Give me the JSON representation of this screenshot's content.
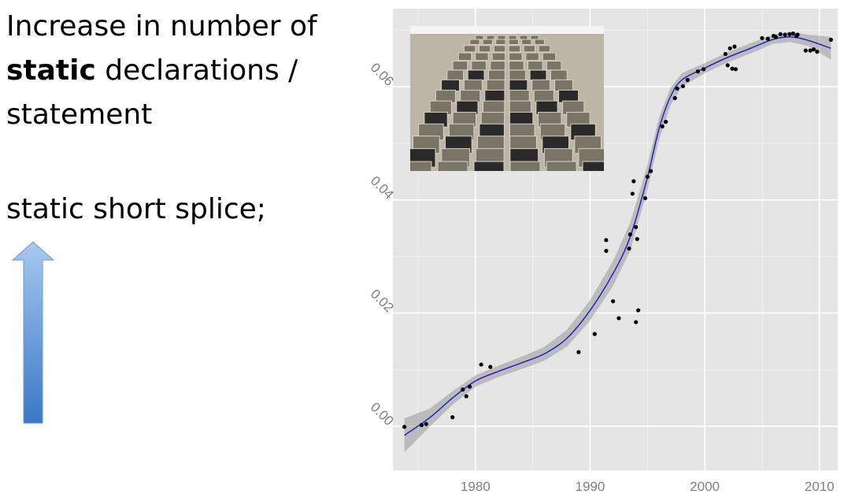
{
  "slide": {
    "title_line1": "Increase in number of",
    "title_bold": "static",
    "title_line2_rest": " declarations /",
    "title_line3": "statement",
    "code_example": "static short splice;"
  },
  "colors": {
    "panel_bg": "#e5e5e5",
    "grid": "#ffffff",
    "smooth_line": "#1a1acc",
    "confidence_band": "#999999",
    "points": "#000000",
    "arrow_top": "#a8c8f0",
    "arrow_bottom": "#3a78c8"
  },
  "icons": {
    "arrow": "up-arrow-icon",
    "photo": "apartment-building-photo"
  },
  "chart_data": {
    "type": "scatter",
    "xlabel": "",
    "ylabel": "",
    "x_ticks": [
      1980,
      1990,
      2000,
      2010
    ],
    "y_ticks": [
      0.0,
      0.02,
      0.04,
      0.06
    ],
    "x_tick_labels": [
      "1980",
      "1990",
      "2000",
      "2010"
    ],
    "y_tick_labels": [
      "0.00",
      "0.02",
      "0.04",
      "0.06"
    ],
    "xlim": [
      1972.8,
      2011.6
    ],
    "ylim": [
      -0.0078,
      0.0738
    ],
    "grid": true,
    "smooth": true,
    "points": [
      [
        1973.8,
        -0.0001
      ],
      [
        1975.3,
        0.0002
      ],
      [
        1975.7,
        0.0004
      ],
      [
        1978.0,
        0.0016
      ],
      [
        1978.9,
        0.0065
      ],
      [
        1979.2,
        0.0053
      ],
      [
        1979.5,
        0.007
      ],
      [
        1980.5,
        0.0109
      ],
      [
        1981.3,
        0.0105
      ],
      [
        1989.0,
        0.0131
      ],
      [
        1990.4,
        0.0163
      ],
      [
        1991.4,
        0.0329
      ],
      [
        1991.4,
        0.031
      ],
      [
        1992.0,
        0.0221
      ],
      [
        1992.5,
        0.0191
      ],
      [
        1993.4,
        0.0314
      ],
      [
        1993.5,
        0.0339
      ],
      [
        1993.7,
        0.0411
      ],
      [
        1993.8,
        0.0433
      ],
      [
        1994.0,
        0.0352
      ],
      [
        1994.0,
        0.0184
      ],
      [
        1994.1,
        0.0331
      ],
      [
        1994.2,
        0.0205
      ],
      [
        1994.8,
        0.0403
      ],
      [
        1995.0,
        0.0441
      ],
      [
        1995.3,
        0.0451
      ],
      [
        1996.3,
        0.053
      ],
      [
        1996.6,
        0.0538
      ],
      [
        1997.4,
        0.058
      ],
      [
        1997.6,
        0.0597
      ],
      [
        1998.1,
        0.0601
      ],
      [
        1998.5,
        0.0612
      ],
      [
        1999.4,
        0.0627
      ],
      [
        1999.9,
        0.0631
      ],
      [
        2001.8,
        0.0658
      ],
      [
        2002.0,
        0.0638
      ],
      [
        2002.2,
        0.0668
      ],
      [
        2002.4,
        0.0632
      ],
      [
        2002.6,
        0.0671
      ],
      [
        2002.7,
        0.0631
      ],
      [
        2005.0,
        0.0686
      ],
      [
        2005.5,
        0.0685
      ],
      [
        2006.0,
        0.069
      ],
      [
        2006.2,
        0.0688
      ],
      [
        2006.6,
        0.0693
      ],
      [
        2007.0,
        0.0692
      ],
      [
        2007.4,
        0.0693
      ],
      [
        2007.7,
        0.0694
      ],
      [
        2008.0,
        0.069
      ],
      [
        2008.1,
        0.0692
      ],
      [
        2008.8,
        0.0664
      ],
      [
        2009.2,
        0.0664
      ],
      [
        2009.5,
        0.0666
      ],
      [
        2009.8,
        0.0662
      ],
      [
        2011.0,
        0.0683
      ]
    ],
    "smooth_curve": [
      [
        1973.8,
        -0.0016
      ],
      [
        1976,
        0.0015
      ],
      [
        1978,
        0.005
      ],
      [
        1980,
        0.008
      ],
      [
        1982,
        0.0097
      ],
      [
        1984,
        0.0112
      ],
      [
        1986,
        0.0128
      ],
      [
        1988,
        0.0156
      ],
      [
        1990,
        0.0205
      ],
      [
        1992,
        0.027
      ],
      [
        1993.5,
        0.0335
      ],
      [
        1995,
        0.044
      ],
      [
        1996,
        0.0525
      ],
      [
        1997,
        0.0582
      ],
      [
        1998,
        0.0612
      ],
      [
        2000,
        0.0633
      ],
      [
        2002,
        0.0652
      ],
      [
        2004,
        0.0668
      ],
      [
        2006,
        0.0684
      ],
      [
        2007.5,
        0.0688
      ],
      [
        2009,
        0.0682
      ],
      [
        2011,
        0.0668
      ]
    ],
    "band_halfwidth": [
      0.003,
      0.0016,
      0.0012,
      0.001,
      0.001,
      0.0011,
      0.0012,
      0.0015,
      0.0018,
      0.0022,
      0.0025,
      0.0022,
      0.002,
      0.0016,
      0.0012,
      0.0009,
      0.0009,
      0.0009,
      0.0008,
      0.0009,
      0.001,
      0.002
    ],
    "inset_image": "apartment-building-photo"
  }
}
